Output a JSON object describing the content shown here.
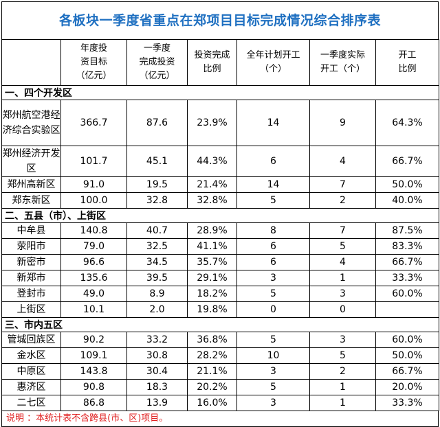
{
  "title": "各板块一季度省重点在郑项目目标完成情况综合排序表",
  "headers": [
    "",
    "年度投\n资目标\n（亿元）",
    "一季度\n完成投资\n（亿元）",
    "投资完成\n比例",
    "全年计划开工\n（个）",
    "一季度实际\n开工（个）",
    "开工\n比例"
  ],
  "sections": [
    {
      "label": "一、四个开发区",
      "rows": [
        {
          "name": "郑州航空港经济综合实验区",
          "target": "366.7",
          "q1": "87.6",
          "ratio": "23.9%",
          "plan": "14",
          "started": "9",
          "start_ratio": "64.3%"
        },
        {
          "name": "郑州经济开发区",
          "target": "101.7",
          "q1": "45.1",
          "ratio": "44.3%",
          "plan": "6",
          "started": "4",
          "start_ratio": "66.7%"
        },
        {
          "name": "郑州高新区",
          "target": "91.0",
          "q1": "19.5",
          "ratio": "21.4%",
          "plan": "14",
          "started": "7",
          "start_ratio": "50.0%"
        },
        {
          "name": "郑东新区",
          "target": "100.0",
          "q1": "32.8",
          "ratio": "32.8%",
          "plan": "5",
          "started": "2",
          "start_ratio": "40.0%"
        }
      ]
    },
    {
      "label": "二、五县（市）、上街区",
      "rows": [
        {
          "name": "中牟县",
          "target": "140.8",
          "q1": "40.7",
          "ratio": "28.9%",
          "plan": "8",
          "started": "7",
          "start_ratio": "87.5%"
        },
        {
          "name": "荥阳市",
          "target": "79.0",
          "q1": "32.5",
          "ratio": "41.1%",
          "plan": "6",
          "started": "5",
          "start_ratio": "83.3%"
        },
        {
          "name": "新密市",
          "target": "96.6",
          "q1": "34.5",
          "ratio": "35.7%",
          "plan": "6",
          "started": "4",
          "start_ratio": "66.7%"
        },
        {
          "name": "新郑市",
          "target": "135.6",
          "q1": "39.5",
          "ratio": "29.1%",
          "plan": "3",
          "started": "1",
          "start_ratio": "33.3%"
        },
        {
          "name": "登封市",
          "target": "49.0",
          "q1": "8.9",
          "ratio": "18.2%",
          "plan": "5",
          "started": "3",
          "start_ratio": "60.0%"
        },
        {
          "name": "上街区",
          "target": "10.1",
          "q1": "2.0",
          "ratio": "19.8%",
          "plan": "0",
          "started": "0",
          "start_ratio": ""
        }
      ]
    },
    {
      "label": "三、市内五区",
      "rows": [
        {
          "name": "管城回族区",
          "target": "90.2",
          "q1": "33.2",
          "ratio": "36.8%",
          "plan": "5",
          "started": "3",
          "start_ratio": "60.0%"
        },
        {
          "name": "金水区",
          "target": "109.1",
          "q1": "30.8",
          "ratio": "28.2%",
          "plan": "10",
          "started": "5",
          "start_ratio": "50.0%"
        },
        {
          "name": "中原区",
          "target": "143.8",
          "q1": "30.4",
          "ratio": "21.1%",
          "plan": "3",
          "started": "2",
          "start_ratio": "66.7%"
        },
        {
          "name": "惠济区",
          "target": "90.8",
          "q1": "18.3",
          "ratio": "20.2%",
          "plan": "5",
          "started": "1",
          "start_ratio": "20.0%"
        },
        {
          "name": "二七区",
          "target": "86.8",
          "q1": "13.9",
          "ratio": "16.0%",
          "plan": "3",
          "started": "1",
          "start_ratio": "33.3%"
        }
      ]
    }
  ],
  "note": "说明 ：本统计表不含跨县(市、区)项目。",
  "colors": {
    "title": "#1f70c1",
    "note": "#e02020"
  }
}
